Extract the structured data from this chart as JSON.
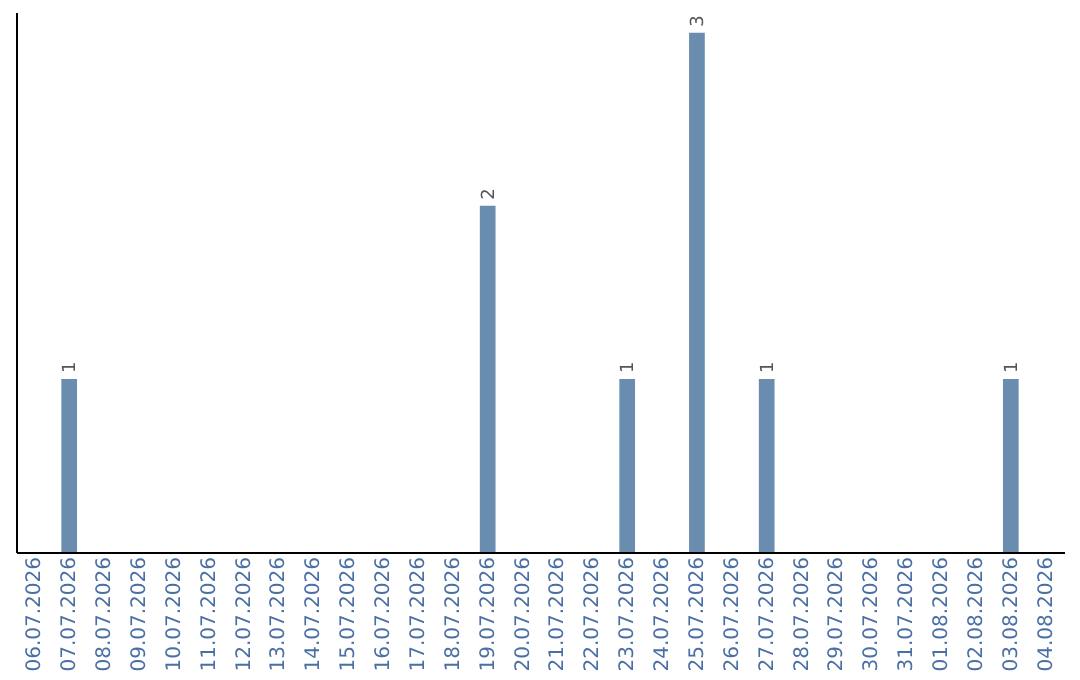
{
  "chart_data": {
    "type": "bar",
    "categories": [
      "06.07.2026",
      "07.07.2026",
      "08.07.2026",
      "09.07.2026",
      "10.07.2026",
      "11.07.2026",
      "12.07.2026",
      "13.07.2026",
      "14.07.2026",
      "15.07.2026",
      "16.07.2026",
      "17.07.2026",
      "18.07.2026",
      "19.07.2026",
      "20.07.2026",
      "21.07.2026",
      "22.07.2026",
      "23.07.2026",
      "24.07.2026",
      "25.07.2026",
      "26.07.2026",
      "27.07.2026",
      "28.07.2026",
      "29.07.2026",
      "30.07.2026",
      "31.07.2026",
      "01.08.2026",
      "02.08.2026",
      "03.08.2026",
      "04.08.2026"
    ],
    "values": [
      null,
      1,
      null,
      null,
      null,
      null,
      null,
      null,
      null,
      null,
      null,
      null,
      null,
      2,
      null,
      null,
      null,
      1,
      null,
      3,
      null,
      1,
      null,
      null,
      null,
      null,
      null,
      null,
      1,
      null
    ],
    "color": "#6a8caf",
    "data_labels": true,
    "tick_labels": "x",
    "grid": false
  }
}
